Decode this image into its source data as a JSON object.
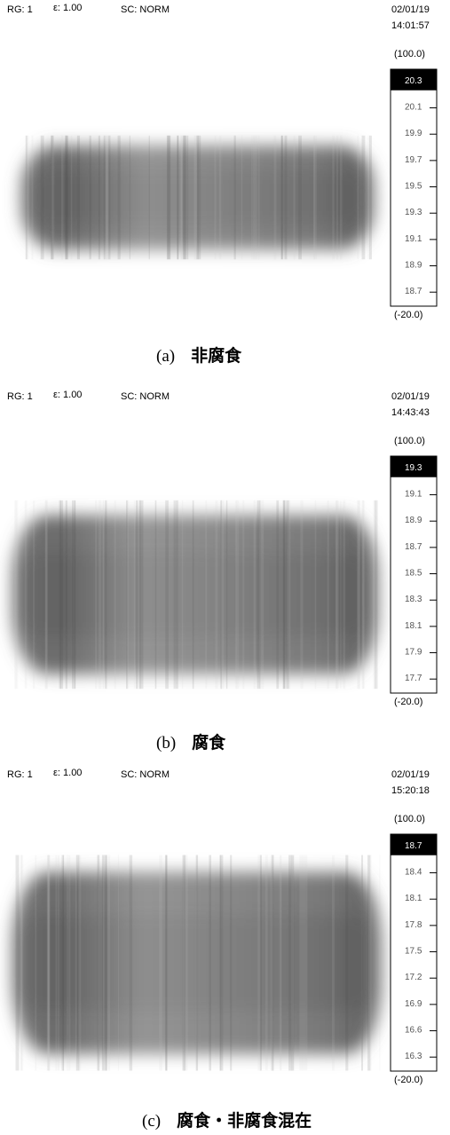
{
  "panels": [
    {
      "range": "RG: 1",
      "emissivity": "ε: 1.00",
      "scale_mode": "SC: NORM",
      "date": "02/01/19",
      "time": "14:01:57",
      "scale_max": "(100.0)",
      "scale_min": "(-20.0)",
      "scale_labels": [
        "20.3",
        "20.1",
        "19.9",
        "19.7",
        "19.5",
        "19.3",
        "19.1",
        "18.9",
        "18.7"
      ],
      "label": "(a)",
      "caption": "非腐食"
    },
    {
      "range": "RG: 1",
      "emissivity": "ε: 1.00",
      "scale_mode": "SC: NORM",
      "date": "02/01/19",
      "time": "14:43:43",
      "scale_max": "(100.0)",
      "scale_min": "(-20.0)",
      "scale_labels": [
        "19.3",
        "19.1",
        "18.9",
        "18.7",
        "18.5",
        "18.3",
        "18.1",
        "17.9",
        "17.7"
      ],
      "label": "(b)",
      "caption": "腐食"
    },
    {
      "range": "RG: 1",
      "emissivity": "ε: 1.00",
      "scale_mode": "SC: NORM",
      "date": "02/01/19",
      "time": "15:20:18",
      "scale_max": "(100.0)",
      "scale_min": "(-20.0)",
      "scale_labels": [
        "18.7",
        "18.4",
        "18.1",
        "17.8",
        "17.5",
        "17.2",
        "16.9",
        "16.6",
        "16.3"
      ],
      "label": "(c)",
      "caption": "腐食・非腐食混在"
    }
  ]
}
